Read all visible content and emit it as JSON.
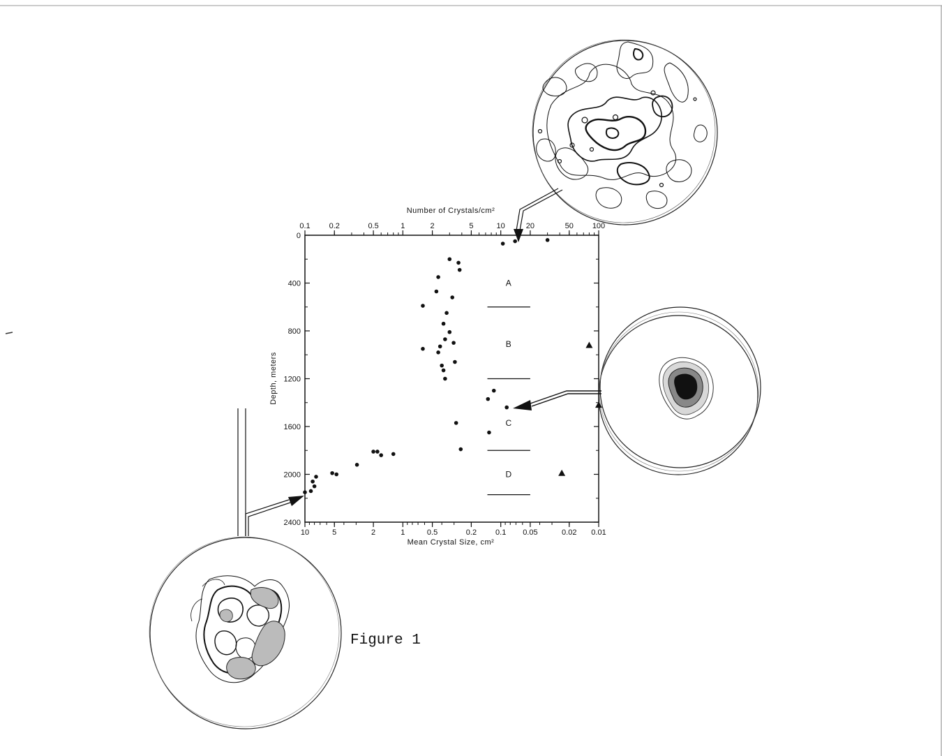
{
  "chart_data": {
    "type": "scatter",
    "title": "",
    "x_axis_top": {
      "label": "Number of Crystals/cm²",
      "scale": "log",
      "range": [
        0.1,
        100
      ],
      "ticks": [
        "0.1",
        "0.2",
        "0.5",
        "1",
        "2",
        "5",
        "10",
        "20",
        "50",
        "100"
      ]
    },
    "x_axis_bottom": {
      "label": "Mean Crystal Size, cm²",
      "scale": "log",
      "range": [
        10,
        0.01
      ],
      "ticks": [
        "10",
        "5",
        "2",
        "1",
        "0.5",
        "0.2",
        "0.1",
        "0.05",
        "0.02",
        "0.01"
      ]
    },
    "y_axis": {
      "label": "Depth, meters",
      "range": [
        0,
        2400
      ],
      "inverted": true,
      "ticks": [
        "0",
        "400",
        "800",
        "1200",
        "1600",
        "2000",
        "2400"
      ]
    },
    "zones": [
      {
        "label": "A",
        "depth_center": 400
      },
      {
        "label": "B",
        "depth_center": 910
      },
      {
        "label": "C",
        "depth_center": 1570
      },
      {
        "label": "D",
        "depth_center": 2000
      }
    ],
    "zone_boundaries_m": [
      600,
      1200,
      1800,
      2170
    ],
    "series": [
      {
        "marker": "circle",
        "points": [
          {
            "n": 10.5,
            "depth": 70
          },
          {
            "n": 14,
            "depth": 50
          },
          {
            "n": 30,
            "depth": 40
          },
          {
            "n": 3,
            "depth": 200
          },
          {
            "n": 3.7,
            "depth": 230
          },
          {
            "n": 3.8,
            "depth": 290
          },
          {
            "n": 2.3,
            "depth": 350
          },
          {
            "n": 3.2,
            "depth": 520
          },
          {
            "n": 2.2,
            "depth": 470
          },
          {
            "n": 1.6,
            "depth": 590
          },
          {
            "n": 2.8,
            "depth": 650
          },
          {
            "n": 2.6,
            "depth": 740
          },
          {
            "n": 3.0,
            "depth": 810
          },
          {
            "n": 2.7,
            "depth": 870
          },
          {
            "n": 3.3,
            "depth": 900
          },
          {
            "n": 2.4,
            "depth": 930
          },
          {
            "n": 1.6,
            "depth": 950
          },
          {
            "n": 2.3,
            "depth": 980
          },
          {
            "n": 3.4,
            "depth": 1060
          },
          {
            "n": 2.5,
            "depth": 1090
          },
          {
            "n": 2.6,
            "depth": 1130
          },
          {
            "n": 2.7,
            "depth": 1200
          },
          {
            "n": 8.5,
            "depth": 1300
          },
          {
            "n": 7.4,
            "depth": 1370
          },
          {
            "n": 11.5,
            "depth": 1440
          },
          {
            "n": 3.5,
            "depth": 1570
          },
          {
            "n": 7.6,
            "depth": 1650
          },
          {
            "n": 3.9,
            "depth": 1790
          },
          {
            "n": 0.8,
            "depth": 1830
          },
          {
            "n": 0.6,
            "depth": 1840
          },
          {
            "n": 0.5,
            "depth": 1810
          },
          {
            "n": 0.55,
            "depth": 1810
          },
          {
            "n": 0.34,
            "depth": 1920
          },
          {
            "n": 0.21,
            "depth": 2000
          },
          {
            "n": 0.19,
            "depth": 1990
          },
          {
            "n": 0.13,
            "depth": 2020
          },
          {
            "n": 0.12,
            "depth": 2060
          },
          {
            "n": 0.125,
            "depth": 2100
          },
          {
            "n": 0.115,
            "depth": 2140
          },
          {
            "n": 0.1,
            "depth": 2150
          }
        ]
      },
      {
        "marker": "triangle",
        "points": [
          {
            "n": 80,
            "depth": 920
          },
          {
            "n": 100,
            "depth": 1420
          },
          {
            "n": 42,
            "depth": 1990
          }
        ]
      }
    ],
    "grid": false,
    "legend": "none"
  },
  "caption": "Figure 1",
  "inset_fabric_diagrams": [
    {
      "name": "shallow-sample",
      "depth": 50
    },
    {
      "name": "mid-sample",
      "depth": 1440
    },
    {
      "name": "deep-sample",
      "depth": 2150
    }
  ]
}
